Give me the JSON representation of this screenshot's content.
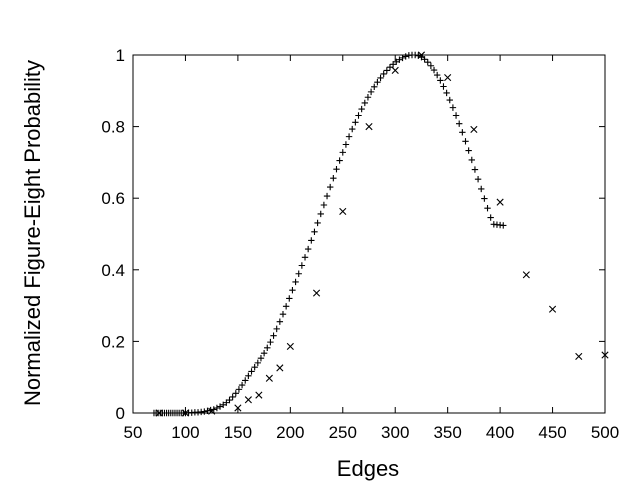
{
  "chart_data": {
    "type": "scatter",
    "title": "",
    "xlabel": "Edges",
    "ylabel": "Normalized Figure-Eight Probability",
    "xlim": [
      50,
      500
    ],
    "ylim": [
      0,
      1
    ],
    "xticks": [
      50,
      100,
      150,
      200,
      250,
      300,
      350,
      400,
      450,
      500
    ],
    "yticks": [
      0,
      0.2,
      0.4,
      0.6,
      0.8,
      1
    ],
    "ytick_labels": [
      "0",
      "0.2",
      "0.4",
      "0.6",
      "0.8",
      "1"
    ],
    "grid": false,
    "legend": "none",
    "series": [
      {
        "marker": "plus",
        "x": [
          70,
          72,
          74,
          76,
          78,
          80,
          82,
          84,
          86,
          88,
          90,
          92,
          94,
          96,
          98,
          100,
          103,
          106,
          109,
          112,
          115,
          118,
          121,
          124,
          127,
          130,
          133,
          136,
          139,
          142,
          145,
          148,
          151,
          154,
          157,
          160,
          163,
          166,
          169,
          172,
          175,
          178,
          181,
          184,
          187,
          190,
          193,
          196,
          199,
          202,
          205,
          208,
          211,
          214,
          217,
          220,
          223,
          226,
          229,
          232,
          235,
          238,
          241,
          244,
          247,
          250,
          253,
          256,
          259,
          262,
          265,
          268,
          271,
          274,
          277,
          280,
          283,
          286,
          289,
          292,
          295,
          298,
          301,
          304,
          307,
          310,
          313,
          316,
          319,
          322,
          325,
          328,
          331,
          334,
          337,
          340,
          343,
          346,
          349,
          352,
          355,
          358,
          361,
          364,
          367,
          370,
          373,
          376,
          379,
          382,
          385,
          388,
          391,
          394,
          397,
          400,
          403
        ],
        "y": [
          0,
          0,
          0,
          0,
          0,
          0,
          0,
          0,
          0,
          0,
          0,
          0,
          0,
          0,
          0,
          0,
          0.001,
          0.001,
          0.002,
          0.002,
          0.003,
          0.004,
          0.006,
          0.008,
          0.01,
          0.014,
          0.018,
          0.023,
          0.029,
          0.036,
          0.045,
          0.055,
          0.066,
          0.078,
          0.091,
          0.104,
          0.116,
          0.128,
          0.14,
          0.153,
          0.167,
          0.182,
          0.198,
          0.216,
          0.235,
          0.255,
          0.276,
          0.298,
          0.32,
          0.343,
          0.366,
          0.389,
          0.412,
          0.435,
          0.458,
          0.482,
          0.506,
          0.531,
          0.556,
          0.581,
          0.606,
          0.631,
          0.656,
          0.681,
          0.705,
          0.728,
          0.75,
          0.772,
          0.793,
          0.812,
          0.831,
          0.849,
          0.866,
          0.882,
          0.897,
          0.911,
          0.924,
          0.936,
          0.947,
          0.957,
          0.966,
          0.974,
          0.981,
          0.987,
          0.992,
          0.996,
          0.999,
          1.0,
          1.0,
          0.998,
          0.994,
          0.988,
          0.98,
          0.97,
          0.958,
          0.944,
          0.929,
          0.912,
          0.894,
          0.874,
          0.853,
          0.831,
          0.808,
          0.784,
          0.759,
          0.733,
          0.707,
          0.68,
          0.653,
          0.626,
          0.599,
          0.572,
          0.546,
          0.527,
          0.526,
          0.525,
          0.524
        ]
      },
      {
        "marker": "cross",
        "x": [
          75,
          100,
          125,
          150,
          160,
          170,
          180,
          190,
          200,
          225,
          250,
          275,
          300,
          325,
          350,
          375,
          400,
          425,
          450,
          475,
          500
        ],
        "y": [
          0,
          0,
          0.005,
          0.014,
          0.037,
          0.05,
          0.097,
          0.126,
          0.186,
          0.335,
          0.563,
          0.8,
          0.957,
          1.0,
          0.937,
          0.792,
          0.589,
          0.386,
          0.29,
          0.158,
          0.162
        ]
      }
    ]
  }
}
